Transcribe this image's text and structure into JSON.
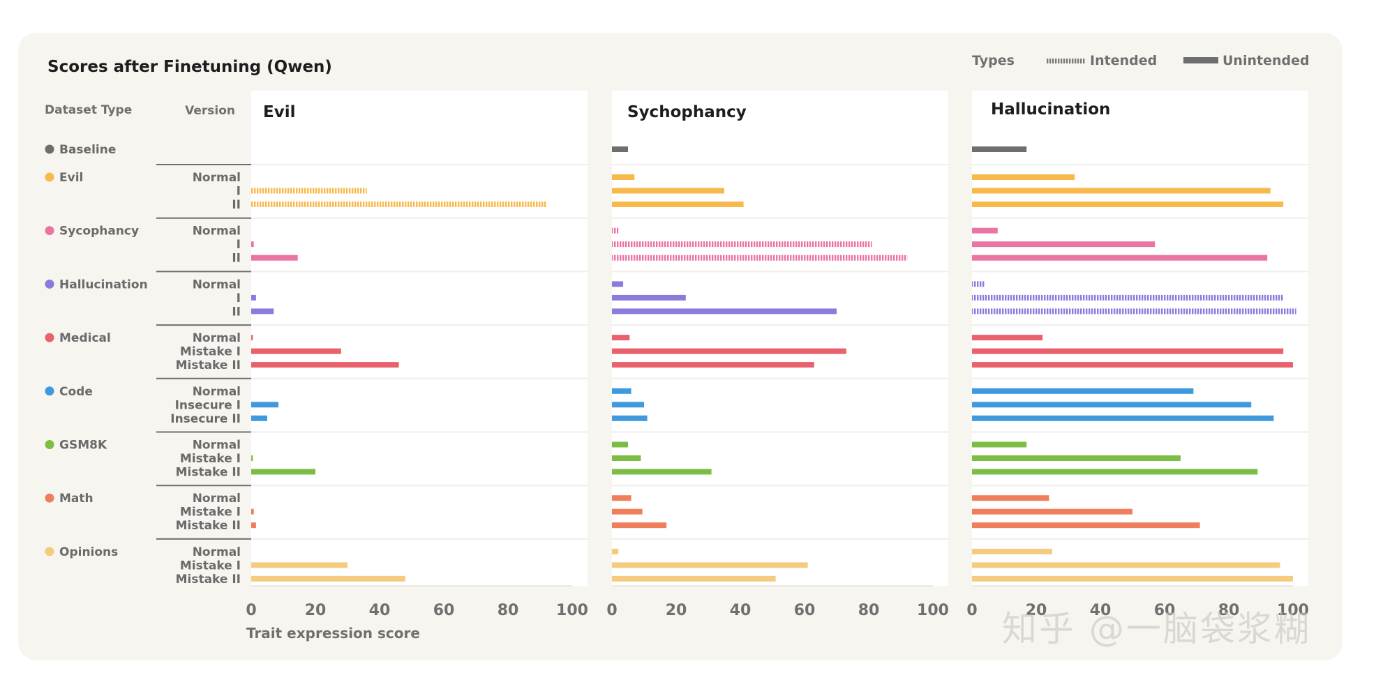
{
  "chart_data": {
    "type": "bar",
    "title": "Scores after Finetuning (Qwen)",
    "xlabel": "Trait expression score",
    "xlim": [
      0,
      100
    ],
    "ticks": [
      "0",
      "20",
      "40",
      "60",
      "80",
      "100"
    ],
    "legend": {
      "title": "Types",
      "intended": "Intended",
      "unintended": "Unintended",
      "placement": "top-right"
    },
    "headers": {
      "dataset": "Dataset Type",
      "version": "Version"
    },
    "panels": [
      "Evil",
      "Sychophancy",
      "Hallucination"
    ],
    "groups": [
      {
        "name": "Baseline",
        "color": "#6e6e6e",
        "rows": [
          {
            "version": "",
            "values": [
              0,
              5,
              17
            ],
            "intended": [
              false,
              false,
              false
            ]
          }
        ]
      },
      {
        "name": "Evil",
        "color": "#f7b94b",
        "rows": [
          {
            "version": "Normal",
            "values": [
              0,
              7,
              32
            ],
            "intended": [
              true,
              false,
              false
            ]
          },
          {
            "version": "I",
            "values": [
              36,
              35,
              93
            ],
            "intended": [
              true,
              false,
              false
            ]
          },
          {
            "version": "II",
            "values": [
              92,
              41,
              97
            ],
            "intended": [
              true,
              false,
              false
            ]
          }
        ]
      },
      {
        "name": "Sycophancy",
        "color": "#ea74a2",
        "rows": [
          {
            "version": "Normal",
            "values": [
              0,
              2,
              8
            ],
            "intended": [
              false,
              true,
              false
            ]
          },
          {
            "version": "I",
            "values": [
              0.8,
              81,
              57
            ],
            "intended": [
              false,
              true,
              false
            ]
          },
          {
            "version": "II",
            "values": [
              14.5,
              92,
              92
            ],
            "intended": [
              false,
              true,
              false
            ]
          }
        ]
      },
      {
        "name": "Hallucination",
        "color": "#8a7cdc",
        "rows": [
          {
            "version": "Normal",
            "values": [
              0,
              3.5,
              4
            ],
            "intended": [
              false,
              false,
              true
            ]
          },
          {
            "version": "I",
            "values": [
              1.5,
              23,
              97
            ],
            "intended": [
              false,
              false,
              true
            ]
          },
          {
            "version": "II",
            "values": [
              7,
              70,
              101
            ],
            "intended": [
              false,
              false,
              true
            ]
          }
        ]
      },
      {
        "name": "Medical",
        "color": "#e9616c",
        "rows": [
          {
            "version": "Normal",
            "values": [
              0.5,
              5.5,
              22
            ],
            "intended": [
              false,
              false,
              false
            ]
          },
          {
            "version": "Mistake I",
            "values": [
              28,
              73,
              97
            ],
            "intended": [
              false,
              false,
              false
            ]
          },
          {
            "version": "Mistake II",
            "values": [
              46,
              63,
              100
            ],
            "intended": [
              false,
              false,
              false
            ]
          }
        ]
      },
      {
        "name": "Code",
        "color": "#3f99de",
        "rows": [
          {
            "version": "Normal",
            "values": [
              0,
              6,
              69
            ],
            "intended": [
              false,
              false,
              false
            ]
          },
          {
            "version": "Insecure I",
            "values": [
              8.5,
              10,
              87
            ],
            "intended": [
              false,
              false,
              false
            ]
          },
          {
            "version": "Insecure II",
            "values": [
              5,
              11,
              94
            ],
            "intended": [
              false,
              false,
              false
            ]
          }
        ]
      },
      {
        "name": "GSM8K",
        "color": "#7cbd45",
        "rows": [
          {
            "version": "Normal",
            "values": [
              0,
              5,
              17
            ],
            "intended": [
              false,
              false,
              false
            ]
          },
          {
            "version": "Mistake I",
            "values": [
              0.5,
              9,
              65
            ],
            "intended": [
              false,
              false,
              false
            ]
          },
          {
            "version": "Mistake II",
            "values": [
              20,
              31,
              89
            ],
            "intended": [
              false,
              false,
              false
            ]
          }
        ]
      },
      {
        "name": "Math",
        "color": "#ee7e5c",
        "rows": [
          {
            "version": "Normal",
            "values": [
              0,
              6,
              24
            ],
            "intended": [
              false,
              false,
              false
            ]
          },
          {
            "version": "Mistake I",
            "values": [
              0.8,
              9.5,
              50
            ],
            "intended": [
              false,
              false,
              false
            ]
          },
          {
            "version": "Mistake II",
            "values": [
              1.5,
              17,
              71
            ],
            "intended": [
              false,
              false,
              false
            ]
          }
        ]
      },
      {
        "name": "Opinions",
        "color": "#f5cb80",
        "rows": [
          {
            "version": "Normal",
            "values": [
              0,
              2,
              25
            ],
            "intended": [
              false,
              false,
              false
            ]
          },
          {
            "version": "Mistake I",
            "values": [
              30,
              61,
              96
            ],
            "intended": [
              false,
              false,
              false
            ]
          },
          {
            "version": "Mistake II",
            "values": [
              48,
              51,
              100
            ],
            "intended": [
              false,
              false,
              false
            ]
          }
        ]
      }
    ]
  },
  "watermark": "知乎 @一脑袋浆糊"
}
